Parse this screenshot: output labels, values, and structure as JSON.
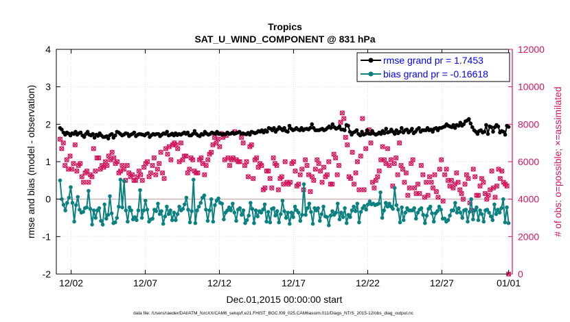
{
  "chart_data": {
    "type": "line",
    "title": "Tropics",
    "subtitle": "SAT_U_WIND_COMPONENT @ 831 hPa",
    "xlabel": "Dec.01,2015 00:00:00 start",
    "ylabel": "rmse and bias (model - observation)",
    "y2label": "# of obs: o=possible; ×=assimilated",
    "footnote": "data file: /Users/raeder/DAI/ATM_forcXX/CAM6_setup/f.e21.FHIST_BGC.f09_025.CAM6assim.011/Diags_NTrS_2015-12/obs_diag_output.nc",
    "xlim": [
      0.5,
      31.25
    ],
    "ylim": [
      -2,
      4
    ],
    "y2lim": [
      0,
      12000
    ],
    "x_ticks": [
      1.5,
      6.5,
      11.5,
      16.5,
      21.5,
      26.5,
      31
    ],
    "x_tick_labels": [
      "12/02",
      "12/07",
      "12/12",
      "12/17",
      "12/22",
      "12/27",
      "01/01"
    ],
    "y_ticks": [
      -2,
      -1,
      0,
      1,
      2,
      3,
      4
    ],
    "y2_ticks": [
      0,
      2000,
      4000,
      6000,
      8000,
      10000,
      12000
    ],
    "legend_position": "top-right",
    "colors": {
      "rmse": "#000000",
      "bias": "#0b8080",
      "obs": "#d4155e",
      "zero_line": "#c8b8b8",
      "grid": "#dedede"
    },
    "series": [
      {
        "name": "rmse grand pr = 1.7453",
        "axis": "left",
        "values": [
          1.9,
          1.86,
          1.78,
          1.72,
          1.78,
          1.75,
          1.7,
          1.76,
          1.74,
          1.8,
          1.72,
          1.76,
          1.78,
          1.7,
          1.66,
          1.74,
          1.8,
          1.72,
          1.7,
          1.74,
          1.64,
          1.72,
          1.69,
          1.76,
          1.7,
          1.66,
          1.66,
          1.68,
          1.62,
          1.71,
          1.74,
          1.64,
          1.7,
          1.8,
          1.78,
          1.74,
          1.7,
          1.72,
          1.76,
          1.75,
          1.68,
          1.72,
          1.74,
          1.78,
          1.68,
          1.72,
          1.74,
          1.73,
          1.72,
          1.7,
          1.74,
          1.76,
          1.66,
          1.71,
          1.74,
          1.72,
          1.74,
          1.74,
          1.68,
          1.72,
          1.76,
          1.74,
          1.8,
          1.7,
          1.72,
          1.75,
          1.7,
          1.76,
          1.71,
          1.74,
          1.72,
          1.75,
          1.78,
          1.74,
          1.78,
          1.7,
          1.7,
          1.74,
          1.82,
          1.74,
          1.7,
          1.68,
          1.74,
          1.72,
          1.8,
          1.75,
          1.72,
          1.74,
          1.78,
          1.76,
          1.74,
          1.8,
          1.74,
          1.75,
          1.72,
          1.74,
          1.73,
          1.78,
          1.74,
          1.75,
          1.78,
          1.74,
          1.76,
          1.78,
          1.8,
          1.74,
          1.76,
          1.74,
          1.73,
          1.77,
          1.72,
          1.8,
          1.78,
          1.76,
          1.78,
          1.82,
          1.8,
          1.84,
          1.78,
          1.84,
          1.8,
          1.9,
          1.88,
          1.84,
          1.9,
          1.8,
          1.86,
          1.92,
          1.88,
          1.84,
          1.9,
          1.82,
          1.8,
          1.96,
          1.88,
          1.84,
          1.86,
          1.9,
          1.86,
          1.84,
          1.9,
          1.84,
          1.87,
          1.88,
          1.86,
          1.9,
          2.0,
          1.9,
          1.84,
          1.84,
          1.84,
          1.86,
          1.88,
          1.84,
          1.86,
          1.9,
          1.94,
          1.9,
          2.0,
          1.92,
          1.88,
          1.9,
          1.94,
          1.86,
          1.86,
          1.84,
          1.98,
          1.96,
          1.8,
          1.72,
          1.78,
          1.8,
          1.84,
          1.74,
          1.7,
          1.8,
          1.72,
          1.74,
          1.84,
          1.75,
          1.74,
          1.82,
          1.75,
          1.72,
          1.74,
          1.78,
          1.74,
          1.82,
          1.76,
          1.88,
          1.78,
          1.8,
          1.86,
          1.8,
          1.74,
          1.84,
          1.76,
          1.8,
          1.9,
          1.78,
          1.84,
          1.86,
          1.78,
          1.82,
          1.88,
          1.76,
          1.8,
          1.86,
          1.9,
          1.8,
          1.84,
          1.84,
          1.84,
          1.9,
          1.84,
          1.86,
          1.8,
          1.88,
          1.9,
          1.84,
          1.9,
          1.9,
          1.92,
          1.94,
          2.0,
          1.96,
          1.94,
          1.92,
          1.98,
          1.9,
          1.98,
          1.96,
          2.04,
          1.96,
          2.0,
          2.08,
          2.1,
          2.14,
          2.02,
          1.92,
          1.84,
          1.8,
          1.74,
          1.82,
          1.84,
          1.78,
          1.8,
          1.98,
          1.74,
          1.94,
          1.92,
          1.8,
          1.92,
          1.98,
          1.94,
          1.78,
          1.82,
          1.8,
          1.72,
          1.96,
          1.93
        ]
      },
      {
        "name": "bias grand pr = -0.16618",
        "axis": "left",
        "values": [
          0.5,
          0.0,
          -0.15,
          -0.3,
          -0.1,
          0.04,
          0.32,
          -0.1,
          -0.6,
          -0.16,
          0.06,
          -0.28,
          -0.36,
          -0.34,
          -0.24,
          -0.22,
          0.22,
          -0.26,
          -0.68,
          -0.3,
          -0.5,
          -0.3,
          -0.24,
          -0.58,
          -0.68,
          -0.14,
          -0.52,
          -0.42,
          0.08,
          -0.38,
          -0.64,
          -0.62,
          -0.5,
          -0.2,
          0.52,
          -0.22,
          0.48,
          -0.3,
          -0.6,
          -0.22,
          -0.3,
          -0.54,
          -0.48,
          -0.56,
          -0.3,
          0.24,
          -0.5,
          -0.3,
          -0.04,
          -0.28,
          -0.6,
          -0.54,
          -0.52,
          -0.28,
          -0.32,
          -0.12,
          -0.4,
          -0.32,
          -0.66,
          -0.46,
          -0.2,
          -0.4,
          -0.3,
          -0.56,
          -0.36,
          -0.56,
          -0.4,
          -0.2,
          -0.3,
          -0.26,
          -0.14,
          0.04,
          -0.28,
          -0.62,
          -0.32,
          0.52,
          -0.64,
          -0.3,
          -0.2,
          -0.1,
          0.04,
          0.1,
          -0.28,
          -0.58,
          -0.3,
          0.0,
          -0.6,
          -0.16,
          -0.04,
          0.02,
          -0.1,
          -0.12,
          -0.54,
          -0.36,
          -0.3,
          -0.22,
          -0.3,
          -0.12,
          -0.36,
          -0.58,
          -0.28,
          -0.24,
          -0.42,
          -0.3,
          -0.64,
          -0.56,
          -0.44,
          -0.1,
          -0.26,
          -0.64,
          -0.3,
          -0.46,
          -0.32,
          -0.36,
          -0.28,
          -0.14,
          -0.6,
          -0.34,
          -0.62,
          -0.26,
          -0.24,
          -0.44,
          -0.32,
          -0.62,
          -0.4,
          -0.04,
          -0.32,
          -0.5,
          -0.36,
          -0.66,
          -0.36,
          -0.48,
          -0.2,
          -0.3,
          -0.36,
          -0.58,
          -0.42,
          0.4,
          -0.42,
          -0.24,
          -0.12,
          -0.34,
          -0.66,
          -0.24,
          -0.3,
          -0.24,
          -0.58,
          -0.4,
          -0.2,
          -0.46,
          -0.48,
          -0.7,
          -0.44,
          -0.32,
          -0.42,
          -0.36,
          -0.12,
          -0.54,
          -0.36,
          -0.48,
          -0.24,
          -0.64,
          -0.42,
          -0.48,
          -0.3,
          -0.2,
          -0.32,
          -0.12,
          -0.62,
          -0.34,
          -0.24,
          -0.18,
          -0.28,
          -0.14,
          -0.06,
          -0.14,
          -0.12,
          -0.16,
          -0.14,
          -0.12,
          0.18,
          -0.5,
          -0.3,
          -0.1,
          -0.2,
          -0.12,
          -0.2,
          -0.26,
          0.3,
          -0.16,
          -0.28,
          -0.62,
          -0.22,
          -0.56,
          -0.36,
          -0.24,
          -0.3,
          -0.3,
          -0.3,
          -0.24,
          -0.52,
          -0.36,
          -0.28,
          -0.24,
          -0.42,
          -0.64,
          -0.44,
          -0.26,
          -0.2,
          -0.38,
          -0.6,
          -0.38,
          -0.32,
          -0.2,
          -0.28,
          -0.52,
          -0.52,
          -0.6,
          -0.56,
          -0.44,
          -0.3,
          -0.3,
          -0.1,
          -0.36,
          -0.24,
          -0.36,
          -0.5,
          -0.3,
          -0.28,
          -0.6,
          -0.34,
          0.0,
          -0.54,
          -0.3,
          -0.22,
          -0.56,
          -0.3,
          -0.4,
          -0.6,
          -0.3,
          -0.28,
          -0.36,
          -0.46,
          -0.56,
          -0.14,
          -0.4,
          -0.28,
          -0.36,
          -0.24,
          0.0,
          -0.62,
          -0.22,
          -0.64
        ]
      },
      {
        "name": "obs possible",
        "axis": "right",
        "values": [
          7200,
          6700,
          7000,
          5800,
          6100,
          5600,
          6300,
          5600,
          5900,
          6900,
          5500,
          5800,
          5900,
          5200,
          4900,
          5400,
          5500,
          4900,
          5300,
          5200,
          6700,
          5500,
          6200,
          6200,
          5600,
          5800,
          5700,
          6000,
          5800,
          6300,
          6100,
          6500,
          6200,
          5900,
          6000,
          5400,
          5500,
          5800,
          5600,
          5000,
          5800,
          5400,
          5200,
          5300,
          5000,
          5000,
          5200,
          5500,
          5300,
          5000,
          5700,
          5900,
          6000,
          5200,
          5400,
          5800,
          6200,
          5300,
          5600,
          5900,
          6500,
          5400,
          5100,
          6700,
          6400,
          6800,
          6100,
          6900,
          7000,
          6900,
          6700,
          6000,
          7000,
          6100,
          6300,
          6300,
          5400,
          5600,
          6200,
          6100,
          5500,
          5400,
          5400,
          6100,
          6200,
          5900,
          5300,
          5800,
          6100,
          6400,
          6500,
          6900,
          7300,
          7000,
          7200,
          6800,
          7500,
          7300,
          6100,
          7400,
          6200,
          5800,
          6100,
          6200,
          7600,
          6100,
          6000,
          6000,
          7300,
          7000,
          5800,
          6000,
          5200,
          6800,
          6900,
          5100,
          6100,
          6200,
          5700,
          5900,
          5800,
          4500,
          4600,
          5500,
          5500,
          5100,
          4600,
          6200,
          5900,
          5800,
          4500,
          5100,
          5200,
          4800,
          6000,
          4900,
          4800,
          4900,
          5900,
          6000,
          5500,
          4700,
          4800,
          5300,
          5600,
          4500,
          6100,
          5800,
          5300,
          4400,
          5200,
          5000,
          5600,
          6100,
          5900,
          5500,
          4900,
          5700,
          5200,
          5300,
          6000,
          4800,
          4800,
          6400,
          6200,
          5300,
          5800,
          8100,
          8600,
          8300,
          7300,
          6900,
          5200,
          5100,
          6500,
          4800,
          5400,
          6000,
          4500,
          6300,
          8300,
          4500,
          6700,
          7600,
          7700,
          7000,
          4900,
          4600,
          5000,
          5200,
          5500,
          6100,
          6800,
          6100,
          5900,
          6700,
          5800,
          6100,
          4700,
          5900,
          6200,
          5300,
          7000,
          5800,
          5600,
          4900,
          5400,
          4200,
          4600,
          5900,
          6100,
          4600,
          4300,
          4800,
          4300,
          5800,
          5300,
          4100,
          4900,
          4200,
          5200,
          4900,
          4600,
          5300,
          4400,
          4100,
          5600,
          6100,
          3900,
          5300,
          5600,
          5000,
          4700,
          5000,
          4600,
          4800,
          5400,
          4900,
          4500,
          4300,
          4000,
          4800,
          5300,
          5100,
          3800,
          3400,
          5600,
          5200,
          4200,
          4200,
          4700,
          5100,
          4900,
          4300,
          4000,
          4200,
          4500,
          5500,
          4600,
          4100,
          4700,
          5600,
          5100,
          5500,
          4900,
          4800,
          4700,
          0
        ]
      },
      {
        "name": "obs assimilated",
        "axis": "right",
        "values": [
          7200,
          6700,
          7000,
          5800,
          6100,
          5600,
          6300,
          5600,
          5900,
          6900,
          5500,
          5800,
          5900,
          5200,
          4900,
          5400,
          5500,
          4900,
          5300,
          5200,
          6700,
          5500,
          6200,
          6200,
          5600,
          5800,
          5700,
          6000,
          5800,
          6300,
          6100,
          6500,
          6200,
          5900,
          6000,
          5400,
          5500,
          5800,
          5600,
          5000,
          5800,
          5400,
          5200,
          5300,
          5000,
          5000,
          5200,
          5500,
          5300,
          5000,
          5700,
          5900,
          6000,
          5200,
          5400,
          5800,
          6200,
          5300,
          5600,
          5900,
          6500,
          5400,
          5100,
          6700,
          6400,
          6800,
          6100,
          6900,
          7000,
          6900,
          6700,
          6000,
          7000,
          6100,
          6300,
          6300,
          5400,
          5600,
          6200,
          6100,
          5500,
          5400,
          5400,
          6100,
          6200,
          5900,
          5300,
          5800,
          6100,
          6400,
          6500,
          6900,
          7300,
          7000,
          7200,
          6800,
          7500,
          7300,
          6100,
          7400,
          6200,
          5800,
          6100,
          6200,
          7600,
          6100,
          6000,
          6000,
          7300,
          7000,
          5800,
          6000,
          5200,
          6800,
          6900,
          5100,
          6100,
          6200,
          5700,
          5900,
          5800,
          4500,
          4600,
          5500,
          5500,
          5100,
          4600,
          6200,
          5900,
          5800,
          4500,
          5100,
          5200,
          4800,
          6000,
          4900,
          4800,
          4900,
          5900,
          6000,
          5500,
          4700,
          4800,
          5300,
          5600,
          4500,
          6100,
          5800,
          5300,
          4400,
          5200,
          5000,
          5600,
          6100,
          5900,
          5500,
          4900,
          5700,
          5200,
          5300,
          6000,
          4800,
          4800,
          6400,
          6200,
          5300,
          5800,
          8100,
          8600,
          8300,
          7300,
          6900,
          5200,
          5100,
          6500,
          4800,
          5400,
          6000,
          4500,
          6300,
          8300,
          4500,
          6700,
          7600,
          7700,
          7000,
          4900,
          4600,
          5000,
          5200,
          5500,
          6100,
          6800,
          6100,
          5900,
          6700,
          5800,
          6100,
          4700,
          5900,
          6200,
          5300,
          7000,
          5800,
          5600,
          4900,
          5400,
          4200,
          4600,
          5900,
          6100,
          4600,
          4300,
          4800,
          4300,
          5800,
          5300,
          4100,
          4900,
          4200,
          5200,
          4900,
          4600,
          5300,
          4400,
          4100,
          5600,
          6100,
          3900,
          5300,
          5600,
          5000,
          4700,
          5000,
          4600,
          4800,
          5400,
          4900,
          4500,
          4300,
          4000,
          4800,
          5300,
          5100,
          3800,
          3400,
          5600,
          5200,
          4200,
          4200,
          4700,
          5100,
          4900,
          4300,
          4000,
          4200,
          4500,
          5500,
          4600,
          4100,
          4700,
          5600,
          5100,
          5500,
          4900,
          4800,
          4700,
          0
        ]
      }
    ]
  }
}
